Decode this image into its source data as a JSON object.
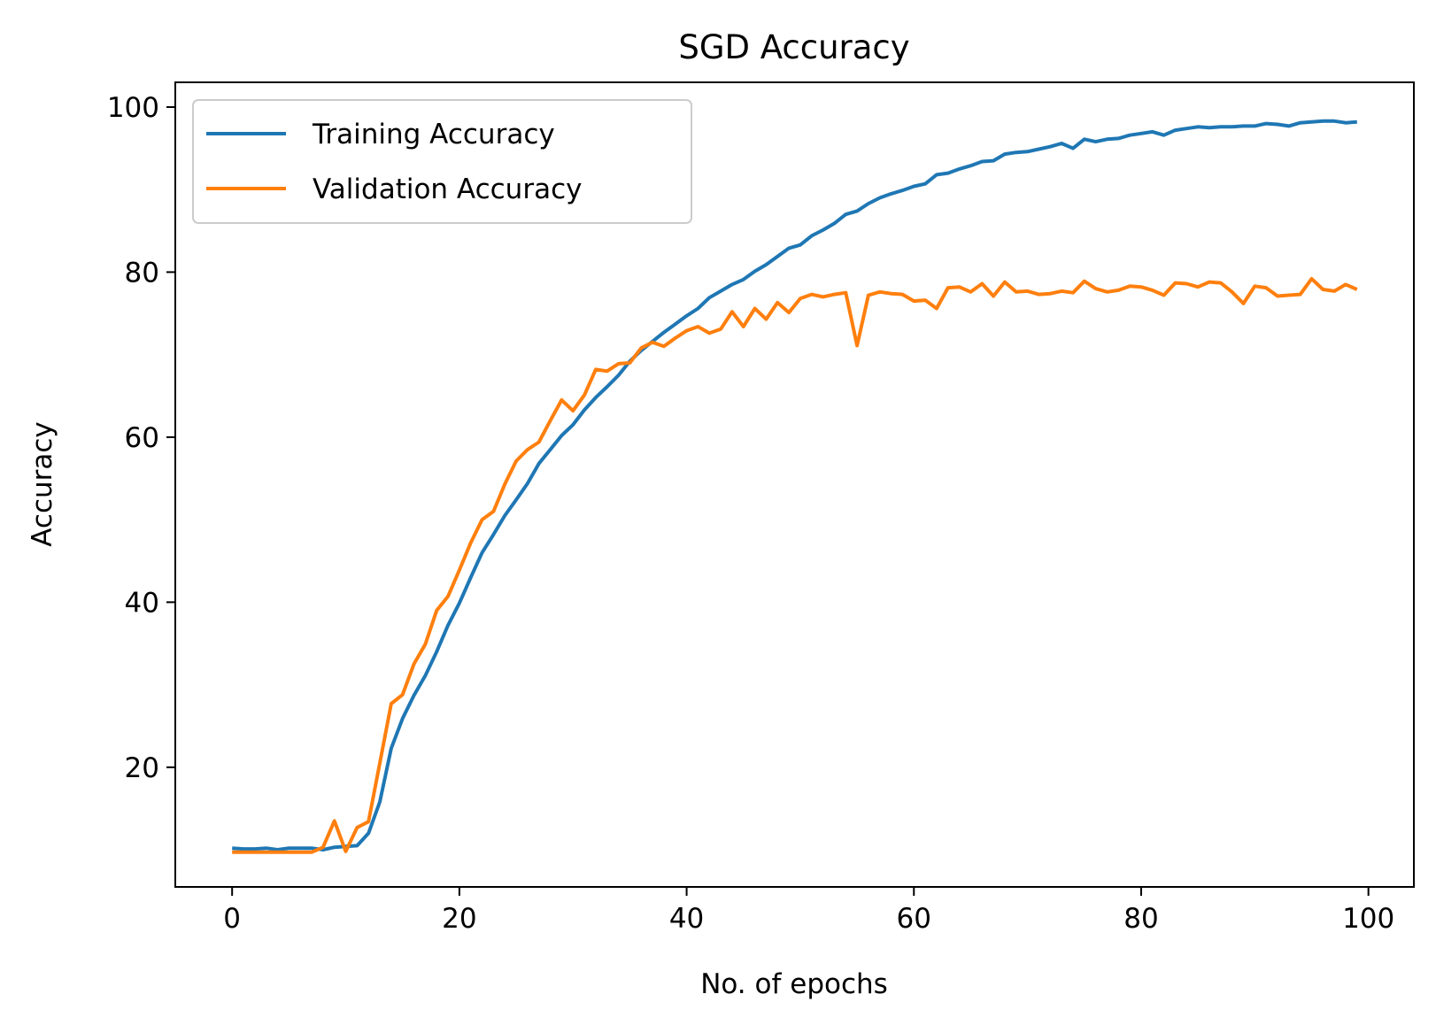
{
  "chart_data": {
    "type": "line",
    "title": "SGD Accuracy",
    "xlabel": "No. of epochs",
    "ylabel": "Accuracy",
    "xlim": [
      -5,
      104
    ],
    "ylim": [
      5.5,
      103
    ],
    "xticks": [
      0,
      20,
      40,
      60,
      80,
      100
    ],
    "yticks": [
      20,
      40,
      60,
      80,
      100
    ],
    "grid": false,
    "legend_placement": "upper-left",
    "series": [
      {
        "name": "Training Accuracy",
        "color": "#1f77b4",
        "x": [
          0,
          1,
          2,
          3,
          4,
          5,
          6,
          7,
          8,
          9,
          10,
          11,
          12,
          13,
          14,
          15,
          16,
          17,
          18,
          19,
          20,
          21,
          22,
          23,
          24,
          25,
          26,
          27,
          28,
          29,
          30,
          31,
          32,
          33,
          34,
          35,
          36,
          37,
          38,
          39,
          40,
          41,
          42,
          43,
          44,
          45,
          46,
          47,
          48,
          49,
          50,
          51,
          52,
          53,
          54,
          55,
          56,
          57,
          58,
          59,
          60,
          61,
          62,
          63,
          64,
          65,
          66,
          67,
          68,
          69,
          70,
          71,
          72,
          73,
          74,
          75,
          76,
          77,
          78,
          79,
          80,
          81,
          82,
          83,
          84,
          85,
          86,
          87,
          88,
          89,
          90,
          91,
          92,
          93,
          94,
          95,
          96,
          97,
          98,
          99
        ],
        "values": [
          10.2,
          10.1,
          10.1,
          10.2,
          10.0,
          10.2,
          10.2,
          10.2,
          10.0,
          10.3,
          10.4,
          10.5,
          12.0,
          15.8,
          22.3,
          25.9,
          28.7,
          31.1,
          34.0,
          37.2,
          39.9,
          43.0,
          46.0,
          48.2,
          50.5,
          52.4,
          54.4,
          56.8,
          58.5,
          60.2,
          61.5,
          63.3,
          64.8,
          66.1,
          67.5,
          69.2,
          70.5,
          71.6,
          72.7,
          73.7,
          74.7,
          75.6,
          76.9,
          77.7,
          78.5,
          79.1,
          80.1,
          80.9,
          81.9,
          82.9,
          83.3,
          84.4,
          85.1,
          85.9,
          87.0,
          87.4,
          88.3,
          89.0,
          89.5,
          89.9,
          90.4,
          90.7,
          91.8,
          92.0,
          92.5,
          92.9,
          93.4,
          93.5,
          94.3,
          94.5,
          94.6,
          94.9,
          95.2,
          95.6,
          95.0,
          96.1,
          95.8,
          96.1,
          96.2,
          96.6,
          96.8,
          97.0,
          96.6,
          97.2,
          97.4,
          97.6,
          97.5,
          97.6,
          97.6,
          97.7,
          97.7,
          98.0,
          97.9,
          97.7,
          98.1,
          98.2,
          98.3,
          98.3,
          98.1,
          98.2
        ]
      },
      {
        "name": "Validation Accuracy",
        "color": "#ff7f0e",
        "x": [
          0,
          1,
          2,
          3,
          4,
          5,
          6,
          7,
          8,
          9,
          10,
          11,
          12,
          13,
          14,
          15,
          16,
          17,
          18,
          19,
          20,
          21,
          22,
          23,
          24,
          25,
          26,
          27,
          28,
          29,
          30,
          31,
          32,
          33,
          34,
          35,
          36,
          37,
          38,
          39,
          40,
          41,
          42,
          43,
          44,
          45,
          46,
          47,
          48,
          49,
          50,
          51,
          52,
          53,
          54,
          55,
          56,
          57,
          58,
          59,
          60,
          61,
          62,
          63,
          64,
          65,
          66,
          67,
          68,
          69,
          70,
          71,
          72,
          73,
          74,
          75,
          76,
          77,
          78,
          79,
          80,
          81,
          82,
          83,
          84,
          85,
          86,
          87,
          88,
          89,
          90,
          91,
          92,
          93,
          94,
          95,
          96,
          97,
          98,
          99
        ],
        "values": [
          9.7,
          9.7,
          9.7,
          9.7,
          9.7,
          9.7,
          9.7,
          9.7,
          10.3,
          13.5,
          9.8,
          12.7,
          13.4,
          20.5,
          27.7,
          28.8,
          32.5,
          34.9,
          39.0,
          40.7,
          43.9,
          47.2,
          50.0,
          51.0,
          54.3,
          57.1,
          58.5,
          59.4,
          62.0,
          64.5,
          63.2,
          65.1,
          68.2,
          68.0,
          68.9,
          69.0,
          70.8,
          71.5,
          71.0,
          72.0,
          72.9,
          73.4,
          72.6,
          73.1,
          75.2,
          73.4,
          75.6,
          74.3,
          76.3,
          75.1,
          76.8,
          77.3,
          77.0,
          77.3,
          77.5,
          71.1,
          77.2,
          77.6,
          77.4,
          77.3,
          76.5,
          76.6,
          75.6,
          78.1,
          78.2,
          77.6,
          78.6,
          77.1,
          78.8,
          77.6,
          77.7,
          77.3,
          77.4,
          77.7,
          77.5,
          78.9,
          78.0,
          77.6,
          77.8,
          78.3,
          78.2,
          77.8,
          77.2,
          78.7,
          78.6,
          78.2,
          78.8,
          78.7,
          77.6,
          76.2,
          78.3,
          78.1,
          77.1,
          77.2,
          77.3,
          79.2,
          77.9,
          77.7,
          78.5,
          77.9
        ]
      }
    ]
  }
}
